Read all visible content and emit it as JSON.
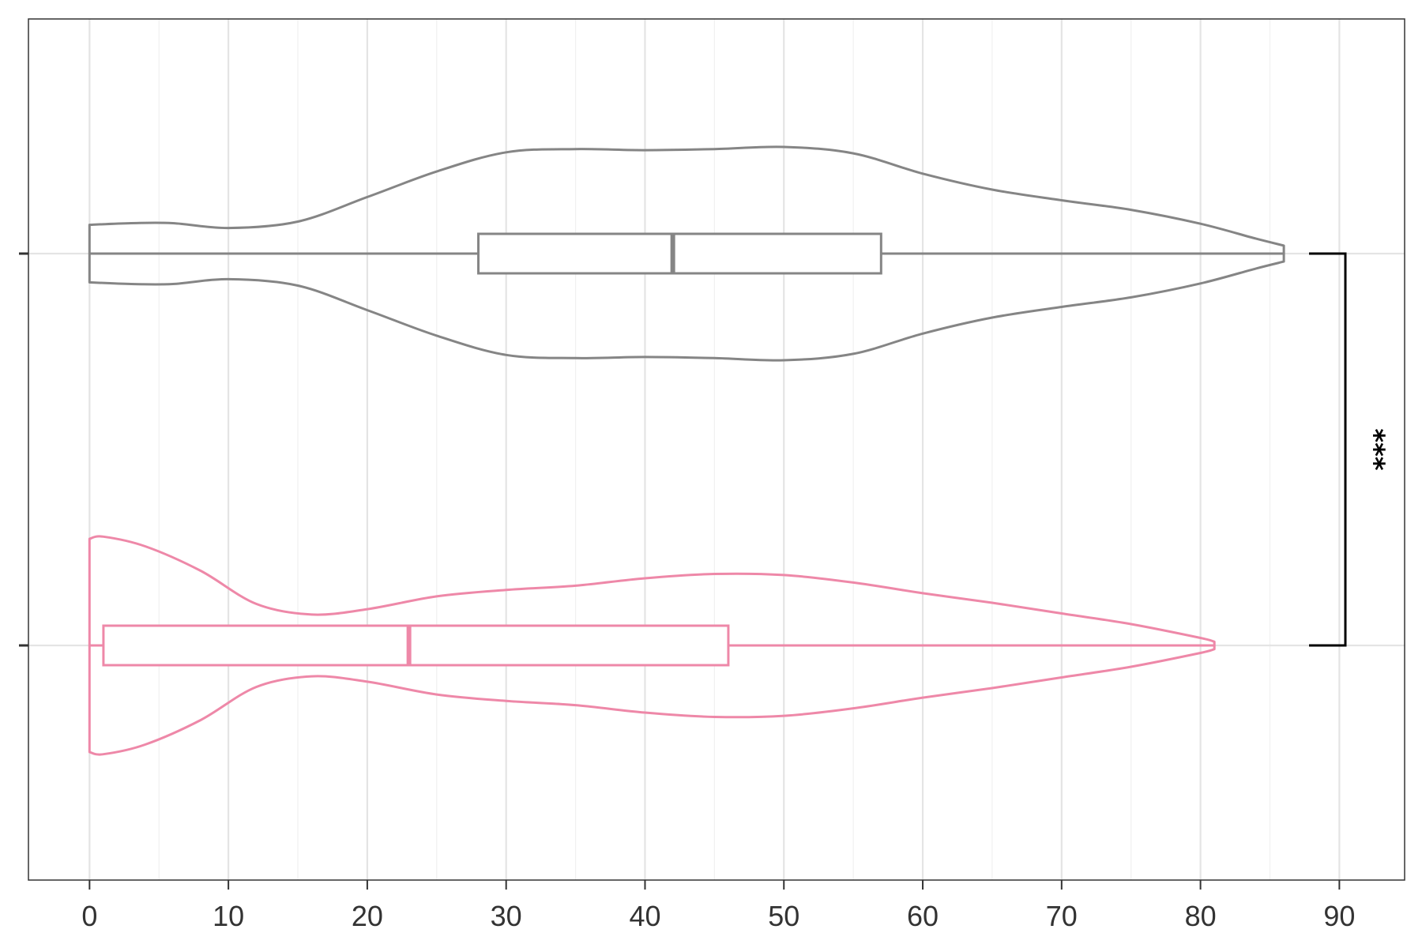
{
  "chart_data": {
    "type": "violin",
    "orientation": "horizontal",
    "xlim": [
      -4.4,
      94.7
    ],
    "x_ticks": [
      0,
      10,
      20,
      30,
      40,
      50,
      60,
      70,
      80,
      90
    ],
    "x_minor_gridlines": [
      5,
      15,
      25,
      35,
      45,
      55,
      65,
      75,
      85
    ],
    "grid": true,
    "xlabel": "",
    "ylabel": "",
    "title": "",
    "groups": [
      {
        "color": "#858585",
        "range": [
          0,
          86
        ],
        "box": {
          "q1": 28,
          "median": 42,
          "q3": 57,
          "whisker_low": 0,
          "whisker_high": 86
        },
        "density_profile": [
          [
            0,
            0.27
          ],
          [
            3,
            0.285
          ],
          [
            6,
            0.285
          ],
          [
            10,
            0.24
          ],
          [
            15,
            0.3
          ],
          [
            20,
            0.53
          ],
          [
            25,
            0.77
          ],
          [
            30,
            0.95
          ],
          [
            35,
            0.98
          ],
          [
            40,
            0.97
          ],
          [
            45,
            0.98
          ],
          [
            50,
            1.0
          ],
          [
            55,
            0.94
          ],
          [
            60,
            0.75
          ],
          [
            65,
            0.6
          ],
          [
            70,
            0.5
          ],
          [
            75,
            0.41
          ],
          [
            80,
            0.28
          ],
          [
            84,
            0.14
          ],
          [
            86,
            0.075
          ]
        ]
      },
      {
        "color": "#EE88A8",
        "range": [
          0,
          81
        ],
        "box": {
          "q1": 1,
          "median": 23,
          "q3": 46,
          "whisker_low": 0,
          "whisker_high": 81
        },
        "density_profile": [
          [
            0,
            1.0
          ],
          [
            1,
            1.02
          ],
          [
            4,
            0.93
          ],
          [
            8,
            0.7
          ],
          [
            12,
            0.39
          ],
          [
            16,
            0.29
          ],
          [
            20,
            0.34
          ],
          [
            25,
            0.46
          ],
          [
            30,
            0.52
          ],
          [
            35,
            0.56
          ],
          [
            40,
            0.63
          ],
          [
            45,
            0.67
          ],
          [
            50,
            0.66
          ],
          [
            55,
            0.59
          ],
          [
            60,
            0.49
          ],
          [
            65,
            0.4
          ],
          [
            70,
            0.3
          ],
          [
            75,
            0.2
          ],
          [
            80,
            0.07
          ],
          [
            81,
            0.035
          ]
        ]
      }
    ],
    "comparison": {
      "groups": [
        0,
        1
      ],
      "label": "***"
    }
  }
}
